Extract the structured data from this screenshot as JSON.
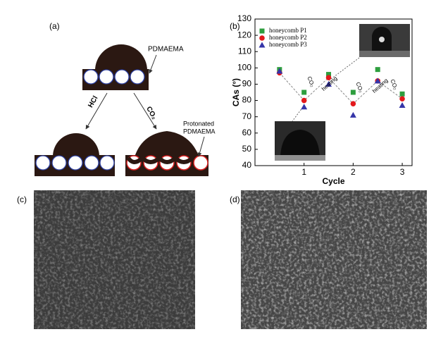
{
  "panel_labels": [
    "(a)",
    "(b)",
    "(c)",
    "(d)"
  ],
  "diagram": {
    "coating": "PDMAEMA",
    "left_arrow": "HCl",
    "right_arrow": "CO₂",
    "protonated": [
      "Protonated",
      "PDMAEMA"
    ]
  },
  "chart_data": {
    "type": "scatter",
    "x_label": "Cycle",
    "y_label": "CAs (°)",
    "x": [
      0.5,
      1,
      1.5,
      2,
      2.5,
      3
    ],
    "xlim": [
      0,
      3.2
    ],
    "xticks": [
      1,
      2,
      3
    ],
    "ylim": [
      40,
      130
    ],
    "yticks": [
      40,
      50,
      60,
      70,
      80,
      90,
      100,
      110,
      120,
      130
    ],
    "legend": "upper left",
    "series": [
      {
        "name": "honeycomb P1",
        "color": "#2e9e3e",
        "marker": "square",
        "values": [
          99,
          85,
          96,
          85,
          99,
          84
        ]
      },
      {
        "name": "honeycomb P2",
        "color": "#e3191c",
        "marker": "circle",
        "values": [
          97,
          80,
          94,
          78,
          92,
          81
        ]
      },
      {
        "name": "honeycomb P3",
        "color": "#3535a8",
        "marker": "triangle",
        "values": [
          98,
          76,
          90,
          71,
          92,
          77
        ]
      }
    ],
    "annotations": [
      "CO₂",
      "heating",
      "CO₂",
      "heating",
      "CO₂"
    ]
  }
}
